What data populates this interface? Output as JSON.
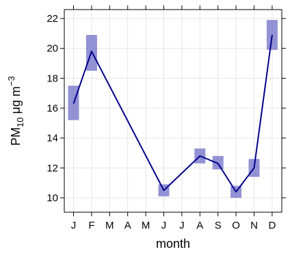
{
  "chart_data": {
    "type": "line",
    "xlabel": "month",
    "ylabel": {
      "base": "PM",
      "sub": "10",
      "unit": " μg m",
      "sup": "−3"
    },
    "categories": [
      "J",
      "F",
      "M",
      "A",
      "M",
      "J",
      "J",
      "A",
      "S",
      "O",
      "N",
      "D"
    ],
    "ylim": [
      9.5,
      22.3
    ],
    "yticks": [
      10,
      12,
      14,
      16,
      18,
      20,
      22
    ],
    "grid": true,
    "series": [
      {
        "type": "line",
        "color": "#00008b",
        "points": [
          {
            "x": "J",
            "y": 16.3
          },
          {
            "x": "F",
            "y": 19.8
          },
          {
            "x": "J",
            "y": 10.5
          },
          {
            "x": "A",
            "y": 12.8
          },
          {
            "x": "S",
            "y": 12.3
          },
          {
            "x": "O",
            "y": 10.4
          },
          {
            "x": "N",
            "y": 12.0
          },
          {
            "x": "D",
            "y": 20.9
          }
        ]
      },
      {
        "type": "interval",
        "color": "#7f7fcc",
        "intervals": [
          {
            "x": "J",
            "low": 15.2,
            "high": 17.5
          },
          {
            "x": "F",
            "low": 18.5,
            "high": 20.9
          },
          {
            "x": "J",
            "low": 10.1,
            "high": 10.9
          },
          {
            "x": "A",
            "low": 12.3,
            "high": 13.3
          },
          {
            "x": "S",
            "low": 11.9,
            "high": 12.8
          },
          {
            "x": "O",
            "low": 10.0,
            "high": 10.8
          },
          {
            "x": "N",
            "low": 11.4,
            "high": 12.6
          },
          {
            "x": "D",
            "low": 19.9,
            "high": 21.9
          }
        ]
      }
    ]
  }
}
